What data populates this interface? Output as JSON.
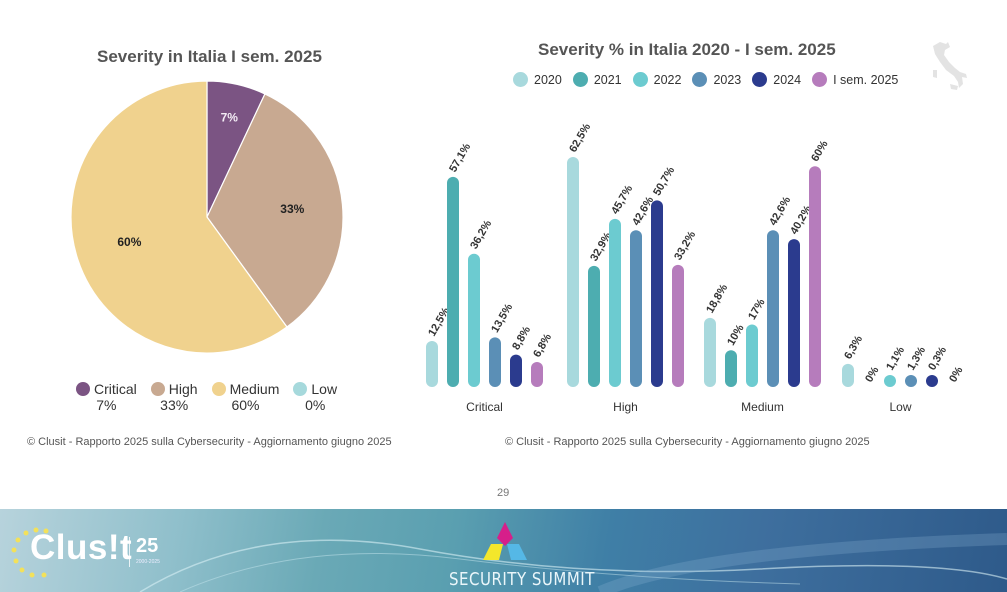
{
  "pie_chart": {
    "title": "Severity in Italia I sem. 2025",
    "legend": [
      {
        "label": "Critical",
        "value": "7%",
        "color": "#7b5483"
      },
      {
        "label": "High",
        "value": "33%",
        "color": "#c8a991"
      },
      {
        "label": "Medium",
        "value": "60%",
        "color": "#f0d28e"
      },
      {
        "label": "Low",
        "value": "0%",
        "color": "#a6d9dc"
      }
    ],
    "source": "© Clusit - Rapporto 2025 sulla Cybersecurity - Aggiornamento giugno 2025"
  },
  "bar_chart": {
    "title": "Severity % in Italia 2020 - I sem. 2025",
    "legend": [
      {
        "label": "2020",
        "color": "#a8d9dd"
      },
      {
        "label": "2021",
        "color": "#4dadb0"
      },
      {
        "label": "2022",
        "color": "#6ccbd0"
      },
      {
        "label": "2023",
        "color": "#5b8fb6"
      },
      {
        "label": "2024",
        "color": "#2b3b8e"
      },
      {
        "label": "I sem. 2025",
        "color": "#b67cbc"
      }
    ],
    "source": "© Clusit - Rapporto 2025 sulla Cybersecurity - Aggiornamento giugno 2025"
  },
  "page_number": "29",
  "footer": {
    "clusit_logo_text": "Clus!t",
    "clusit_anniversary": "25",
    "clusit_years": "2000-2025",
    "summit_text": "SECURITY SUMMIT"
  },
  "chart_data": [
    {
      "type": "pie",
      "title": "Severity in Italia I sem. 2025",
      "categories": [
        "Critical",
        "High",
        "Medium",
        "Low"
      ],
      "values": [
        7,
        33,
        60,
        0
      ],
      "labels": [
        "7%",
        "33%",
        "60%",
        "0%"
      ],
      "colors": [
        "#7b5483",
        "#c8a991",
        "#f0d28e",
        "#a6d9dc"
      ],
      "legend": "bottom"
    },
    {
      "type": "bar",
      "title": "Severity % in Italia 2020 - I sem. 2025",
      "categories": [
        "Critical",
        "High",
        "Medium",
        "Low"
      ],
      "series": [
        {
          "name": "2020",
          "values": [
            12.5,
            62.5,
            18.8,
            6.3
          ],
          "labels": [
            "12,5%",
            "62,5%",
            "18,8%",
            "6,3%"
          ],
          "color": "#a8d9dd"
        },
        {
          "name": "2021",
          "values": [
            57.1,
            32.9,
            10,
            0
          ],
          "labels": [
            "57,1%",
            "32,9%",
            "10%",
            "0%"
          ],
          "color": "#4dadb0"
        },
        {
          "name": "2022",
          "values": [
            36.2,
            45.7,
            17,
            1.1
          ],
          "labels": [
            "36,2%",
            "45,7%",
            "17%",
            "1,1%"
          ],
          "color": "#6ccbd0"
        },
        {
          "name": "2023",
          "values": [
            13.5,
            42.6,
            42.6,
            1.3
          ],
          "labels": [
            "13,5%",
            "42,6%",
            "42,6%",
            "1,3%"
          ],
          "color": "#5b8fb6"
        },
        {
          "name": "2024",
          "values": [
            8.8,
            50.7,
            40.2,
            0.3
          ],
          "labels": [
            "8,8%",
            "50,7%",
            "40,2%",
            "0,3%"
          ],
          "color": "#2b3b8e"
        },
        {
          "name": "I sem. 2025",
          "values": [
            6.8,
            33.2,
            60,
            0
          ],
          "labels": [
            "6,8%",
            "33,2%",
            "60%",
            "0%"
          ],
          "color": "#b67cbc"
        }
      ],
      "xlabel": "",
      "ylabel": "",
      "ylim": [
        0,
        65
      ],
      "grid": false,
      "legend": "top"
    }
  ]
}
